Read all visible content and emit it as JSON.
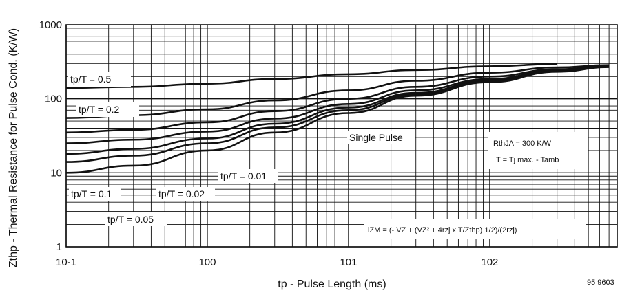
{
  "chart_data": {
    "type": "line",
    "x_scale": "log",
    "y_scale": "log",
    "xlim": [
      0.1,
      800
    ],
    "ylim": [
      1,
      1000
    ],
    "xlabel": "tp - Pulse Length (ms)",
    "ylabel": "Zthp - Thermal Resistance for Pulse Cond. (K/W)",
    "grid": true,
    "x_ticks": [
      {
        "value": 0.1,
        "label": "10-1"
      },
      {
        "value": 1,
        "label": "100"
      },
      {
        "value": 10,
        "label": "101"
      },
      {
        "value": 100,
        "label": "102"
      }
    ],
    "y_ticks": [
      {
        "value": 1,
        "label": "1"
      },
      {
        "value": 10,
        "label": "10"
      },
      {
        "value": 100,
        "label": "100"
      },
      {
        "value": 1000,
        "label": "1000"
      }
    ],
    "series": [
      {
        "name": "tp/T = 0.5",
        "x": [
          0.1,
          0.3,
          1,
          3,
          10,
          30,
          100,
          300
        ],
        "y": [
          140,
          145,
          160,
          185,
          215,
          245,
          275,
          295
        ]
      },
      {
        "name": "tp/T = 0.2",
        "x": [
          0.1,
          0.3,
          1,
          3,
          10,
          30,
          100,
          300,
          700
        ],
        "y": [
          55,
          60,
          72,
          95,
          130,
          175,
          225,
          265,
          285
        ]
      },
      {
        "name": "tp/T = 0.1",
        "x": [
          0.1,
          0.3,
          1,
          3,
          10,
          30,
          100,
          300,
          700
        ],
        "y": [
          35,
          38,
          48,
          68,
          100,
          145,
          200,
          250,
          280
        ]
      },
      {
        "name": "tp/T = 0.05",
        "x": [
          0.1,
          0.3,
          1,
          3,
          10,
          30,
          100,
          300,
          700
        ],
        "y": [
          25,
          28,
          36,
          54,
          85,
          130,
          185,
          245,
          275
        ]
      },
      {
        "name": "tp/T = 0.02",
        "x": [
          0.1,
          0.3,
          1,
          3,
          10,
          30,
          100,
          300,
          700
        ],
        "y": [
          18,
          21,
          29,
          46,
          76,
          120,
          178,
          240,
          272
        ]
      },
      {
        "name": "tp/T = 0.01",
        "x": [
          0.1,
          0.3,
          1,
          3,
          10,
          30,
          100,
          300,
          700
        ],
        "y": [
          14,
          17,
          25,
          41,
          70,
          115,
          172,
          235,
          270
        ]
      },
      {
        "name": "Single Pulse",
        "x": [
          0.1,
          0.3,
          1,
          3,
          10,
          30,
          100,
          300,
          700
        ],
        "y": [
          10,
          12.5,
          20,
          35,
          64,
          110,
          168,
          232,
          268
        ]
      }
    ],
    "annotations": {
      "rth": "RthJA = 300 K/W",
      "temp": "T = Tj max. - Tamb",
      "formula": "iZM = (- VZ + (VZ² + 4rzj x T/Zthp) 1/2)/(2rzj)",
      "figure_id": "95 9603"
    }
  }
}
